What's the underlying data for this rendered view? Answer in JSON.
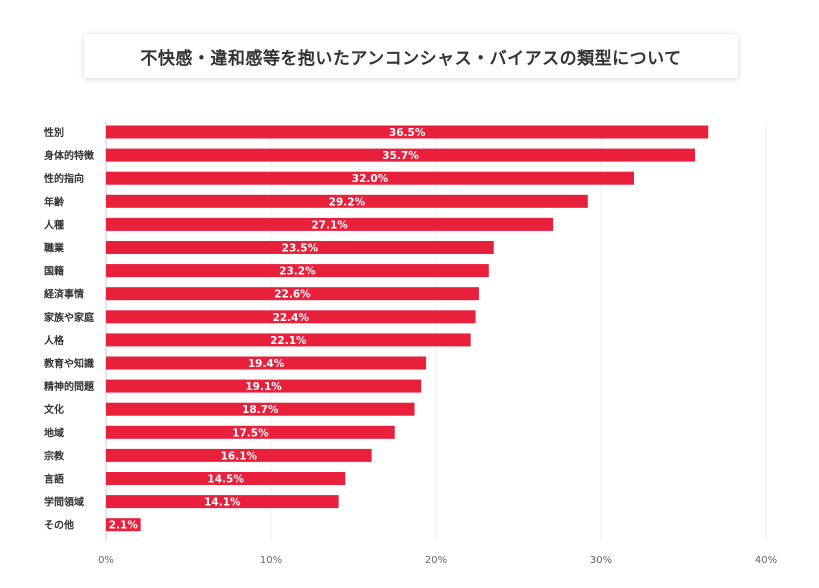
{
  "title": "不快感・違和感等を抱いたアンコンシャス・バイアスの類型について",
  "colors": {
    "bar": "#e8203c",
    "grid": "#eeeeee",
    "axis": "#cccccc"
  },
  "chart_data": {
    "type": "bar",
    "orientation": "horizontal",
    "title": "不快感・違和感等を抱いたアンコンシャス・バイアスの類型について",
    "categories": [
      "性別",
      "身体的特徴",
      "性的指向",
      "年齢",
      "人種",
      "職業",
      "国籍",
      "経済事情",
      "家族や家庭",
      "人格",
      "教育や知識",
      "精神的問題",
      "文化",
      "地域",
      "宗教",
      "言語",
      "学問領域",
      "その他"
    ],
    "values": [
      36.5,
      35.7,
      32.0,
      29.2,
      27.1,
      23.5,
      23.2,
      22.6,
      22.4,
      22.1,
      19.4,
      19.1,
      18.7,
      17.5,
      16.1,
      14.5,
      14.1,
      2.1
    ],
    "value_labels": [
      "36.5%",
      "35.7%",
      "32.0%",
      "29.2%",
      "27.1%",
      "23.5%",
      "23.2%",
      "22.6%",
      "22.4%",
      "22.1%",
      "19.4%",
      "19.1%",
      "18.7%",
      "17.5%",
      "16.1%",
      "14.5%",
      "14.1%",
      "2.1%"
    ],
    "xlim": [
      0,
      40
    ],
    "xticks": [
      0,
      10,
      20,
      30,
      40
    ],
    "xtick_labels": [
      "0%",
      "10%",
      "20%",
      "30%",
      "40%"
    ],
    "xlabel": "",
    "ylabel": "",
    "grid": true,
    "legend": "none"
  }
}
